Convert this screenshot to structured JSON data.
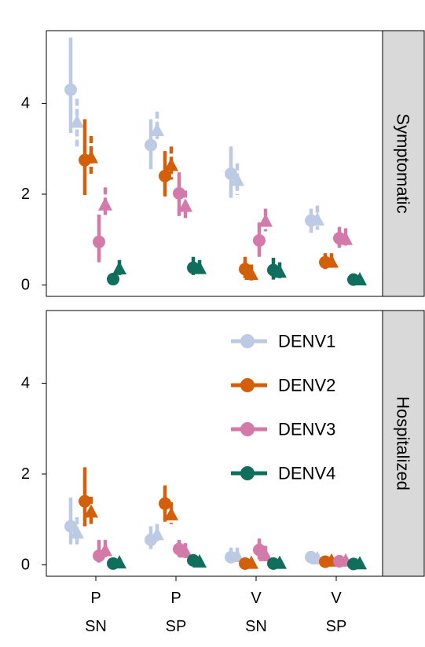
{
  "chart_data": {
    "type": "scatter",
    "categories": [
      [
        "P",
        "SN"
      ],
      [
        "P",
        "SP"
      ],
      [
        "V",
        "SN"
      ],
      [
        "V",
        "SP"
      ]
    ],
    "ylim": [
      -0.25,
      5.6
    ],
    "yticks": [
      "0",
      "2",
      "4"
    ],
    "legend": {
      "position": "top-right",
      "panel": "Hospitalized"
    },
    "colors": {
      "DENV1": "#bccbe3",
      "DENV2": "#d35f0b",
      "DENV3": "#d47aaa",
      "DENV4": "#0f6e5c"
    },
    "panels": [
      {
        "name": "Symptomatic",
        "series": [
          {
            "name": "DENV1",
            "circle": [
              {
                "y": 4.3,
                "lo": 3.35,
                "hi": 5.45
              },
              {
                "y": 3.08,
                "lo": 2.55,
                "hi": 3.65
              },
              {
                "y": 2.45,
                "lo": 1.92,
                "hi": 3.05
              },
              {
                "y": 1.42,
                "lo": 1.15,
                "hi": 1.68
              }
            ],
            "triangle": [
              {
                "y": 3.6,
                "lo": 3.05,
                "hi": 4.1
              },
              {
                "y": 3.42,
                "lo": 3.2,
                "hi": 3.82
              },
              {
                "y": 2.32,
                "lo": 1.98,
                "hi": 2.68
              },
              {
                "y": 1.45,
                "lo": 1.22,
                "hi": 1.75
              }
            ]
          },
          {
            "name": "DENV2",
            "circle": [
              {
                "y": 2.75,
                "lo": 1.98,
                "hi": 3.65
              },
              {
                "y": 2.4,
                "lo": 1.95,
                "hi": 2.95
              },
              {
                "y": 0.35,
                "lo": 0.15,
                "hi": 0.62
              },
              {
                "y": 0.5,
                "lo": 0.35,
                "hi": 0.7
              }
            ],
            "triangle": [
              {
                "y": 2.82,
                "lo": 2.42,
                "hi": 3.28
              },
              {
                "y": 2.65,
                "lo": 2.32,
                "hi": 3.05
              },
              {
                "y": 0.25,
                "lo": 0.1,
                "hi": 0.45
              },
              {
                "y": 0.52,
                "lo": 0.38,
                "hi": 0.7
              }
            ]
          },
          {
            "name": "DENV3",
            "circle": [
              {
                "y": 0.95,
                "lo": 0.5,
                "hi": 1.55
              },
              {
                "y": 2.02,
                "lo": 1.52,
                "hi": 2.48
              },
              {
                "y": 0.98,
                "lo": 0.62,
                "hi": 1.38
              },
              {
                "y": 1.03,
                "lo": 0.82,
                "hi": 1.28
              }
            ],
            "triangle": [
              {
                "y": 1.78,
                "lo": 1.48,
                "hi": 2.15
              },
              {
                "y": 1.75,
                "lo": 1.45,
                "hi": 2.08
              },
              {
                "y": 1.42,
                "lo": 1.18,
                "hi": 1.68
              },
              {
                "y": 1.02,
                "lo": 0.82,
                "hi": 1.25
              }
            ]
          },
          {
            "name": "DENV4",
            "circle": [
              {
                "y": 0.13,
                "lo": 0.05,
                "hi": 0.22
              },
              {
                "y": 0.38,
                "lo": 0.22,
                "hi": 0.62
              },
              {
                "y": 0.33,
                "lo": 0.12,
                "hi": 0.6
              },
              {
                "y": 0.12,
                "lo": 0.05,
                "hi": 0.18
              }
            ],
            "triangle": [
              {
                "y": 0.37,
                "lo": 0.22,
                "hi": 0.55
              },
              {
                "y": 0.38,
                "lo": 0.25,
                "hi": 0.55
              },
              {
                "y": 0.3,
                "lo": 0.15,
                "hi": 0.5
              },
              {
                "y": 0.13,
                "lo": 0.06,
                "hi": 0.2
              }
            ]
          }
        ]
      },
      {
        "name": "Hospitalized",
        "series": [
          {
            "name": "DENV1",
            "circle": [
              {
                "y": 0.85,
                "lo": 0.45,
                "hi": 1.48
              },
              {
                "y": 0.55,
                "lo": 0.35,
                "hi": 0.85
              },
              {
                "y": 0.17,
                "lo": 0.05,
                "hi": 0.38
              },
              {
                "y": 0.17,
                "lo": 0.1,
                "hi": 0.25
              }
            ],
            "triangle": [
              {
                "y": 0.72,
                "lo": 0.45,
                "hi": 1.05
              },
              {
                "y": 0.68,
                "lo": 0.45,
                "hi": 0.9
              },
              {
                "y": 0.2,
                "lo": 0.08,
                "hi": 0.38
              },
              {
                "y": 0.15,
                "lo": 0.08,
                "hi": 0.22
              }
            ]
          },
          {
            "name": "DENV2",
            "circle": [
              {
                "y": 1.4,
                "lo": 0.85,
                "hi": 2.15
              },
              {
                "y": 1.35,
                "lo": 0.95,
                "hi": 1.75
              },
              {
                "y": 0.03,
                "lo": 0.0,
                "hi": 0.1
              },
              {
                "y": 0.07,
                "lo": 0.02,
                "hi": 0.15
              }
            ],
            "triangle": [
              {
                "y": 1.18,
                "lo": 0.9,
                "hi": 1.5
              },
              {
                "y": 1.12,
                "lo": 0.9,
                "hi": 1.38
              },
              {
                "y": 0.05,
                "lo": 0.0,
                "hi": 0.12
              },
              {
                "y": 0.1,
                "lo": 0.03,
                "hi": 0.18
              }
            ]
          },
          {
            "name": "DENV3",
            "circle": [
              {
                "y": 0.2,
                "lo": 0.05,
                "hi": 0.55
              },
              {
                "y": 0.35,
                "lo": 0.18,
                "hi": 0.55
              },
              {
                "y": 0.33,
                "lo": 0.12,
                "hi": 0.58
              },
              {
                "y": 0.08,
                "lo": 0.02,
                "hi": 0.15
              }
            ],
            "triangle": [
              {
                "y": 0.33,
                "lo": 0.15,
                "hi": 0.55
              },
              {
                "y": 0.3,
                "lo": 0.15,
                "hi": 0.48
              },
              {
                "y": 0.22,
                "lo": 0.08,
                "hi": 0.42
              },
              {
                "y": 0.1,
                "lo": 0.03,
                "hi": 0.18
              }
            ]
          },
          {
            "name": "DENV4",
            "circle": [
              {
                "y": 0.03,
                "lo": 0.0,
                "hi": 0.08
              },
              {
                "y": 0.1,
                "lo": 0.03,
                "hi": 0.2
              },
              {
                "y": 0.03,
                "lo": 0.0,
                "hi": 0.08
              },
              {
                "y": 0.02,
                "lo": 0.0,
                "hi": 0.06
              }
            ],
            "triangle": [
              {
                "y": 0.06,
                "lo": 0.0,
                "hi": 0.12
              },
              {
                "y": 0.08,
                "lo": 0.02,
                "hi": 0.15
              },
              {
                "y": 0.05,
                "lo": 0.0,
                "hi": 0.1
              },
              {
                "y": 0.04,
                "lo": 0.0,
                "hi": 0.08
              }
            ]
          }
        ]
      }
    ]
  }
}
